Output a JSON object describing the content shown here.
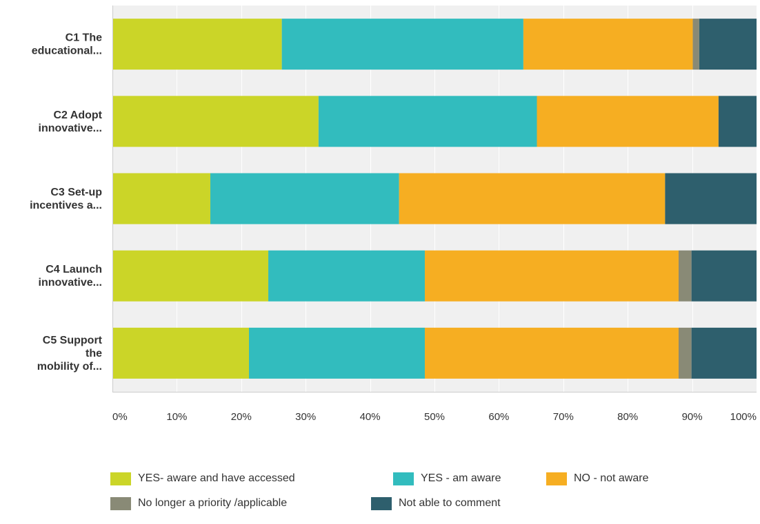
{
  "chart_data": {
    "type": "bar",
    "orientation": "horizontal",
    "stacked": true,
    "percent": true,
    "categories": [
      [
        "C1 The",
        "educational..."
      ],
      [
        "C2 Adopt",
        "innovative..."
      ],
      [
        "C3 Set-up",
        "incentives a..."
      ],
      [
        "C4 Launch",
        "innovative..."
      ],
      [
        "C5 Support",
        "the",
        "mobility of..."
      ]
    ],
    "series": [
      {
        "name": "YES- aware and have accessed",
        "color": "#cbd528",
        "values": [
          26.3,
          32.0,
          15.2,
          24.2,
          21.2
        ]
      },
      {
        "name": "YES - am aware",
        "color": "#32bcbe",
        "values": [
          37.5,
          33.9,
          29.3,
          24.3,
          27.3
        ]
      },
      {
        "name": "NO - not aware",
        "color": "#f6ae22",
        "values": [
          26.3,
          28.2,
          41.3,
          39.4,
          39.4
        ]
      },
      {
        "name": "No longer a priority /applicable",
        "color": "#898a76",
        "values": [
          1.0,
          0.0,
          0.0,
          2.0,
          2.0
        ]
      },
      {
        "name": "Not able to comment",
        "color": "#2e5f6d",
        "values": [
          8.9,
          5.9,
          14.2,
          10.1,
          10.1
        ]
      }
    ],
    "x_ticks": [
      "0%",
      "10%",
      "20%",
      "30%",
      "40%",
      "50%",
      "60%",
      "70%",
      "80%",
      "90%",
      "100%"
    ],
    "xlim": [
      0,
      100
    ],
    "grid": true,
    "legend_position": "bottom"
  }
}
